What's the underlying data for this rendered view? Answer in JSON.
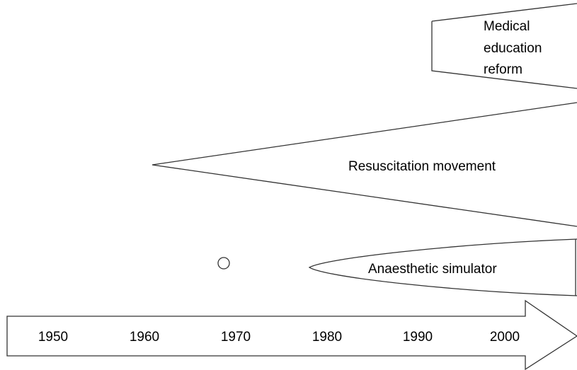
{
  "shapes": {
    "medical_education_reform": {
      "lines": [
        "Medical",
        "education",
        "reform"
      ]
    },
    "resuscitation_movement": {
      "label": "Resuscitation movement"
    },
    "anaesthetic_simulator": {
      "label": "Anaesthetic simulator"
    }
  },
  "timeline": {
    "years": [
      1950,
      1960,
      1970,
      1980,
      1990,
      2000
    ]
  }
}
